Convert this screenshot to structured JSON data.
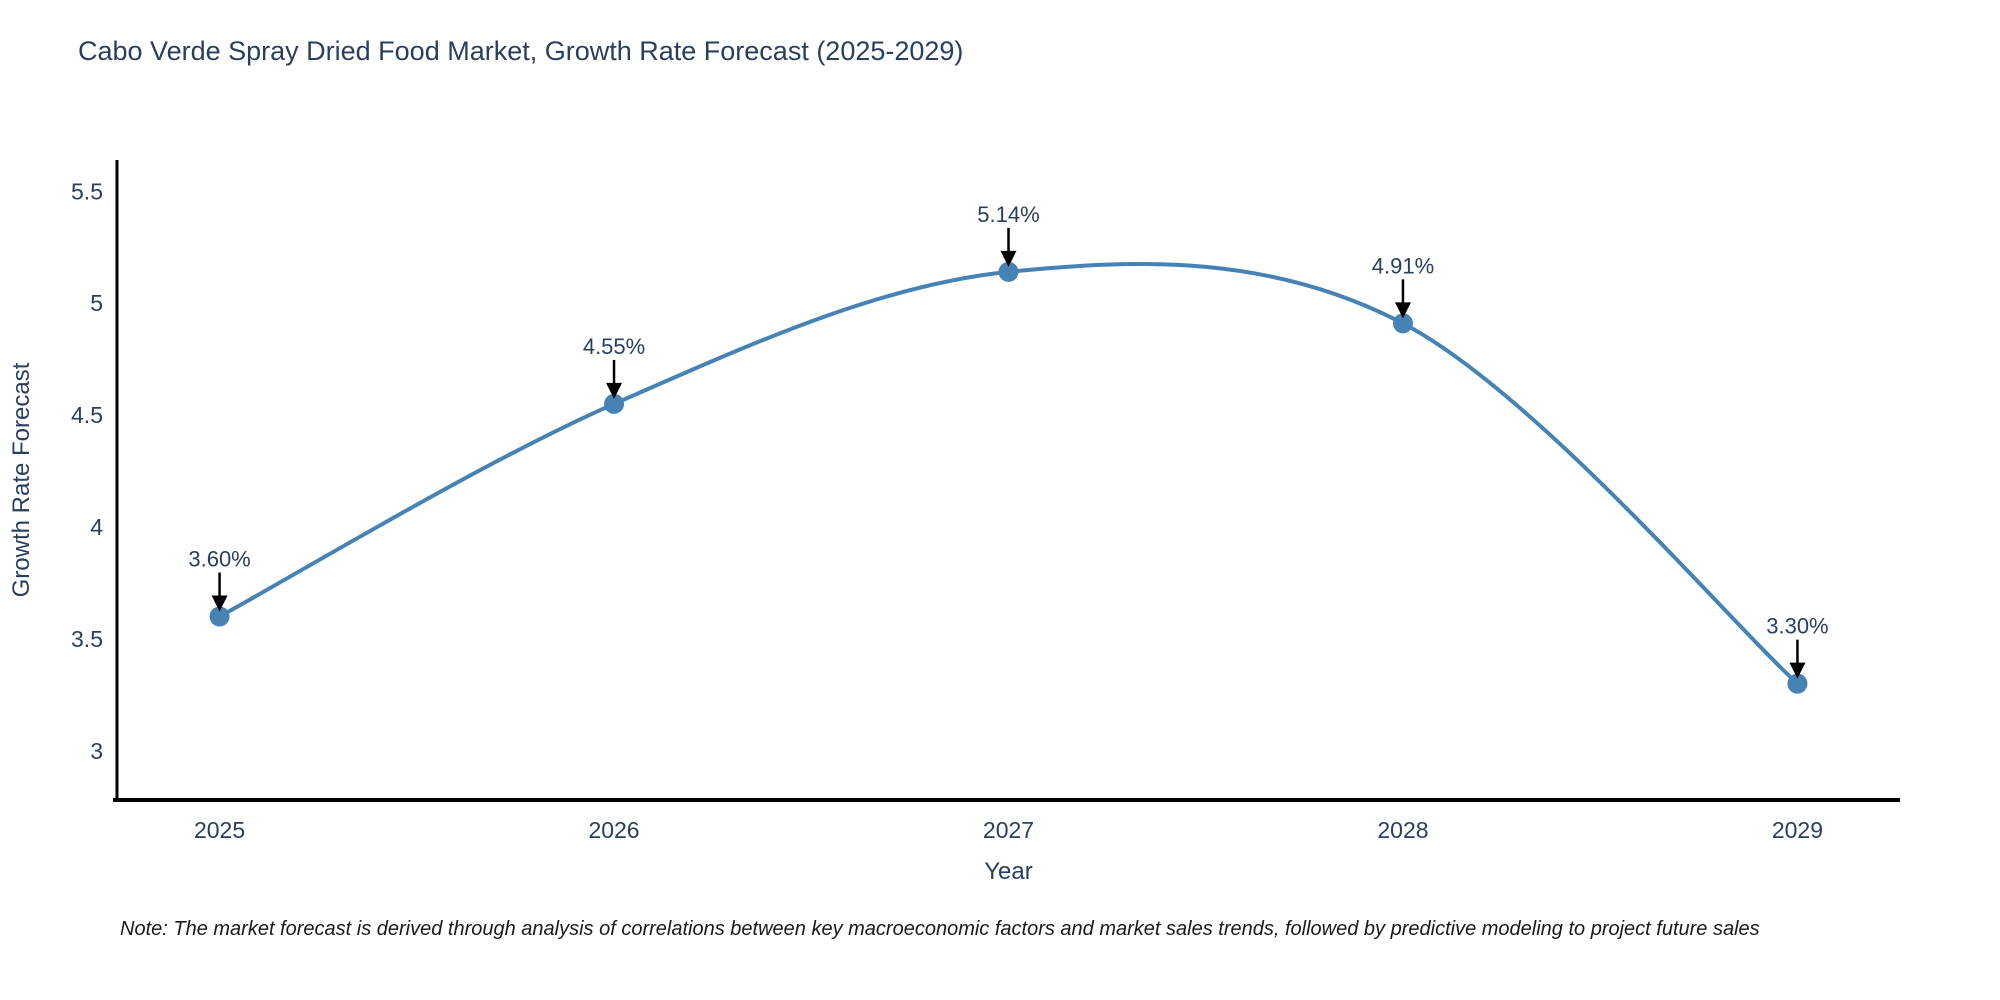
{
  "chart_data": {
    "type": "line",
    "title": "Cabo Verde Spray Dried Food Market, Growth Rate Forecast (2025-2029)",
    "xlabel": "Year",
    "ylabel": "Growth Rate Forecast",
    "note": "Note: The market forecast is derived through analysis of correlations between key macroeconomic factors and market sales trends, followed by predictive modeling to project future sales",
    "x": [
      2025,
      2026,
      2027,
      2028,
      2029
    ],
    "values": [
      3.6,
      4.55,
      5.14,
      4.91,
      3.3
    ],
    "point_labels": [
      "3.60%",
      "4.55%",
      "5.14%",
      "4.91%",
      "3.30%"
    ],
    "x_tick_labels": [
      "2025",
      "2026",
      "2027",
      "2028",
      "2029"
    ],
    "y_ticks": [
      3,
      3.5,
      4,
      4.5,
      5,
      5.5
    ],
    "y_tick_labels": [
      "3",
      "3.5",
      "4",
      "4.5",
      "5",
      "5.5"
    ],
    "xlim": [
      2024.74,
      2029.26
    ],
    "ylim": [
      2.78,
      5.64
    ],
    "line_shape": "spline",
    "grid": false,
    "legend": false,
    "colors": {
      "line": "#4682b4",
      "marker": "#4682b4",
      "annotation_arrow": "#000000",
      "text": "#2a3f5f",
      "axis_line": "#000000",
      "note_text": "#1a1a1a",
      "background": "#ffffff"
    }
  }
}
